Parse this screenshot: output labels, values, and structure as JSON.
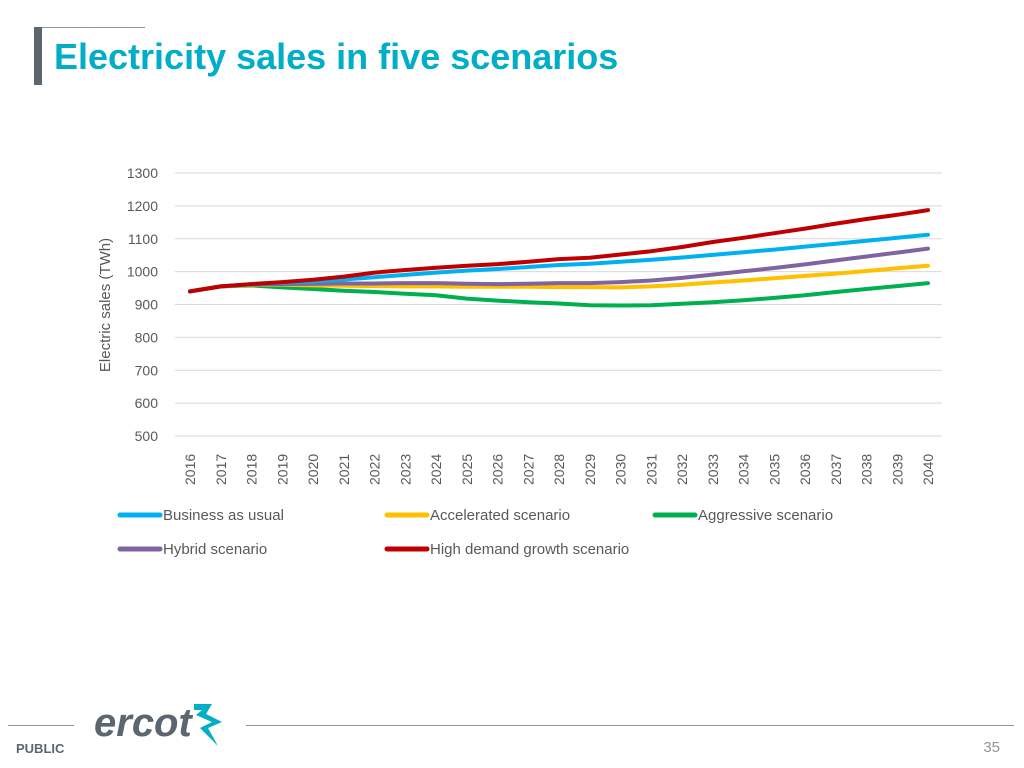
{
  "slide": {
    "title": "Electricity sales in five scenarios",
    "classification": "PUBLIC",
    "page_number": "35",
    "logo_text": "ercot"
  },
  "chart_data": {
    "type": "line",
    "title": "",
    "xlabel": "",
    "ylabel": "Electric sales (TWh)",
    "ylim": [
      500,
      1300
    ],
    "yticks": [
      500,
      600,
      700,
      800,
      900,
      1000,
      1100,
      1200,
      1300
    ],
    "grid": true,
    "legend_placement": "bottom",
    "x": [
      2016,
      2017,
      2018,
      2019,
      2020,
      2021,
      2022,
      2023,
      2024,
      2025,
      2026,
      2027,
      2028,
      2029,
      2030,
      2031,
      2032,
      2033,
      2034,
      2035,
      2036,
      2037,
      2038,
      2039,
      2040
    ],
    "series": [
      {
        "name": "Business as usual",
        "color": "#00b0f0",
        "values": [
          940,
          955,
          962,
          966,
          970,
          976,
          983,
          990,
          997,
          1003,
          1008,
          1014,
          1020,
          1024,
          1030,
          1036,
          1043,
          1051,
          1059,
          1067,
          1076,
          1085,
          1094,
          1103,
          1112
        ]
      },
      {
        "name": "Accelerated scenario",
        "color": "#ffc000",
        "values": [
          940,
          955,
          960,
          960,
          958,
          957,
          956,
          955,
          955,
          954,
          954,
          954,
          953,
          953,
          952,
          955,
          960,
          967,
          973,
          980,
          987,
          994,
          1002,
          1010,
          1018
        ]
      },
      {
        "name": "Aggressive scenario",
        "color": "#00b050",
        "values": [
          940,
          955,
          958,
          952,
          947,
          942,
          938,
          933,
          928,
          918,
          912,
          907,
          903,
          898,
          897,
          898,
          902,
          907,
          913,
          920,
          928,
          938,
          947,
          956,
          965
        ]
      },
      {
        "name": "Hybrid scenario",
        "color": "#8064a2",
        "values": [
          940,
          955,
          961,
          962,
          963,
          964,
          964,
          965,
          965,
          963,
          962,
          963,
          965,
          965,
          968,
          973,
          981,
          991,
          1001,
          1011,
          1022,
          1034,
          1046,
          1058,
          1070
        ]
      },
      {
        "name": "High demand growth scenario",
        "color": "#c00000",
        "values": [
          940,
          955,
          962,
          968,
          975,
          985,
          997,
          1005,
          1012,
          1018,
          1023,
          1030,
          1038,
          1042,
          1052,
          1062,
          1075,
          1090,
          1103,
          1117,
          1131,
          1146,
          1160,
          1173,
          1187
        ]
      }
    ]
  }
}
